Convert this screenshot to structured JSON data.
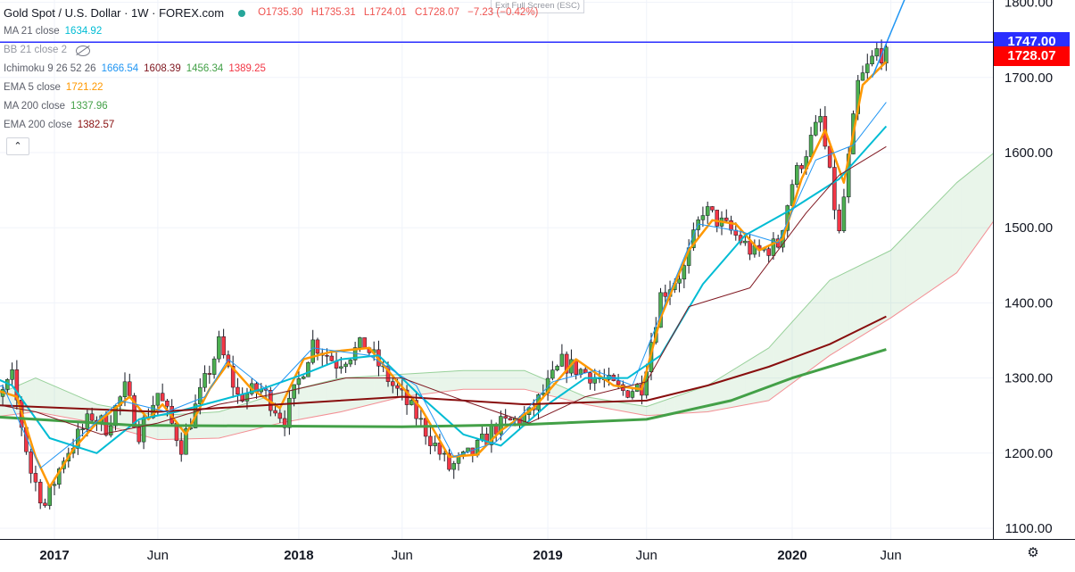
{
  "legend": {
    "title": "Gold Spot / U.S. Dollar · 1W · FOREX.com",
    "ohlc": {
      "o": "O1735.30",
      "h": "H1735.31",
      "l": "L1724.01",
      "c": "C1728.07",
      "chg": "−7.23 (−0.42%)"
    },
    "exit_fullscreen": "Exit Full Screen (ESC)",
    "indicators": [
      {
        "label": "MA 21 close",
        "values": [
          {
            "v": "1634.92",
            "color": "#00bcd4"
          }
        ]
      },
      {
        "label": "BB 21 close 2",
        "values": [],
        "hidden": true
      },
      {
        "label": "Ichimoku 9 26 52 26",
        "values": [
          {
            "v": "1666.54",
            "color": "#2196f3"
          },
          {
            "v": "1608.39",
            "color": "#801922"
          },
          {
            "v": "1456.34",
            "color": "#43a047"
          },
          {
            "v": "1389.25",
            "color": "#f23645"
          }
        ]
      },
      {
        "label": "EMA 5 close",
        "values": [
          {
            "v": "1721.22",
            "color": "#ff9800"
          }
        ]
      },
      {
        "label": "MA 200 close",
        "values": [
          {
            "v": "1337.96",
            "color": "#43a047"
          }
        ]
      },
      {
        "label": "EMA 200 close",
        "values": [
          {
            "v": "1382.57",
            "color": "#880e0e"
          }
        ]
      }
    ],
    "collapse_icon": "chevron-up-icon"
  },
  "price_tags": [
    {
      "text": "1747.00",
      "value": 1747.0,
      "color": "#2a2eff"
    },
    {
      "text": "1728.07",
      "value": 1728.07,
      "color": "#ff0000"
    }
  ],
  "settings_icon": "gear-icon",
  "chart_data": {
    "type": "candlestick",
    "y_ticks": [
      "1100.00",
      "1200.00",
      "1300.00",
      "1400.00",
      "1500.00",
      "1600.00",
      "1700.00",
      "1800.00"
    ],
    "y_range": [
      1082,
      1822
    ],
    "x_ticks": [
      "2017",
      "Jun",
      "2018",
      "Jun",
      "2019",
      "Jun",
      "2020",
      "Jun"
    ],
    "horizontal_line": 1747.0,
    "colors": {
      "up": "#4caf50",
      "down": "#f23645",
      "grid": "#f0f3fa"
    },
    "close_path": [
      [
        "2016-09-05",
        1330
      ],
      [
        "2016-10-03",
        1260
      ],
      [
        "2016-10-31",
        1300
      ],
      [
        "2016-11-28",
        1175
      ],
      [
        "2016-12-19",
        1130
      ],
      [
        "2017-01-16",
        1195
      ],
      [
        "2017-02-27",
        1250
      ],
      [
        "2017-03-20",
        1235
      ],
      [
        "2017-04-17",
        1285
      ],
      [
        "2017-05-08",
        1228
      ],
      [
        "2017-06-05",
        1280
      ],
      [
        "2017-07-10",
        1210
      ],
      [
        "2017-09-04",
        1345
      ],
      [
        "2017-10-02",
        1275
      ],
      [
        "2017-11-06",
        1285
      ],
      [
        "2017-12-11",
        1245
      ],
      [
        "2018-01-22",
        1348
      ],
      [
        "2018-02-26",
        1320
      ],
      [
        "2018-04-09",
        1345
      ],
      [
        "2018-05-21",
        1290
      ],
      [
        "2018-06-25",
        1250
      ],
      [
        "2018-08-13",
        1180
      ],
      [
        "2018-09-17",
        1200
      ],
      [
        "2018-10-22",
        1235
      ],
      [
        "2018-12-10",
        1250
      ],
      [
        "2019-01-28",
        1320
      ],
      [
        "2019-03-11",
        1305
      ],
      [
        "2019-04-29",
        1282
      ],
      [
        "2019-05-27",
        1290
      ],
      [
        "2019-06-24",
        1410
      ],
      [
        "2019-07-29",
        1445
      ],
      [
        "2019-08-26",
        1525
      ],
      [
        "2019-10-07",
        1495
      ],
      [
        "2019-11-11",
        1465
      ],
      [
        "2019-12-16",
        1478
      ],
      [
        "2020-01-06",
        1560
      ],
      [
        "2020-02-17",
        1645
      ],
      [
        "2020-03-16",
        1490
      ],
      [
        "2020-04-13",
        1690
      ],
      [
        "2020-05-11",
        1735
      ],
      [
        "2020-05-25",
        1728
      ]
    ],
    "series": [
      {
        "name": "EMA 5 close",
        "color": "#ff9800",
        "width": 2.5,
        "points": [
          [
            "2016-10-03",
            1285
          ],
          [
            "2016-11-07",
            1275
          ],
          [
            "2016-12-05",
            1195
          ],
          [
            "2016-12-26",
            1155
          ],
          [
            "2017-01-30",
            1205
          ],
          [
            "2017-03-06",
            1240
          ],
          [
            "2017-04-24",
            1275
          ],
          [
            "2017-05-22",
            1245
          ],
          [
            "2017-06-12",
            1265
          ],
          [
            "2017-07-17",
            1225
          ],
          [
            "2017-08-21",
            1285
          ],
          [
            "2017-09-18",
            1320
          ],
          [
            "2017-10-23",
            1285
          ],
          [
            "2017-12-04",
            1260
          ],
          [
            "2018-01-08",
            1325
          ],
          [
            "2018-02-19",
            1335
          ],
          [
            "2018-04-16",
            1340
          ],
          [
            "2018-05-28",
            1295
          ],
          [
            "2018-07-02",
            1260
          ],
          [
            "2018-08-13",
            1195
          ],
          [
            "2018-09-24",
            1198
          ],
          [
            "2018-10-29",
            1230
          ],
          [
            "2018-12-17",
            1260
          ],
          [
            "2019-02-18",
            1325
          ],
          [
            "2019-04-15",
            1290
          ],
          [
            "2019-05-27",
            1285
          ],
          [
            "2019-06-24",
            1380
          ],
          [
            "2019-08-05",
            1470
          ],
          [
            "2019-09-09",
            1510
          ],
          [
            "2019-10-14",
            1505
          ],
          [
            "2019-11-18",
            1470
          ],
          [
            "2019-12-23",
            1485
          ],
          [
            "2020-01-20",
            1565
          ],
          [
            "2020-02-24",
            1630
          ],
          [
            "2020-03-23",
            1560
          ],
          [
            "2020-04-20",
            1690
          ],
          [
            "2020-05-25",
            1721
          ]
        ]
      },
      {
        "name": "MA 21 close",
        "color": "#00bcd4",
        "width": 2,
        "points": [
          [
            "2016-09-05",
            1312
          ],
          [
            "2016-10-31",
            1290
          ],
          [
            "2016-12-26",
            1220
          ],
          [
            "2017-03-06",
            1200
          ],
          [
            "2017-05-08",
            1245
          ],
          [
            "2017-07-03",
            1255
          ],
          [
            "2017-09-04",
            1270
          ],
          [
            "2017-11-06",
            1285
          ],
          [
            "2018-01-08",
            1305
          ],
          [
            "2018-03-05",
            1325
          ],
          [
            "2018-04-30",
            1330
          ],
          [
            "2018-07-02",
            1275
          ],
          [
            "2018-09-03",
            1225
          ],
          [
            "2018-10-29",
            1210
          ],
          [
            "2019-01-07",
            1265
          ],
          [
            "2019-03-04",
            1300
          ],
          [
            "2019-05-06",
            1300
          ],
          [
            "2019-06-24",
            1330
          ],
          [
            "2019-08-26",
            1425
          ],
          [
            "2019-10-28",
            1490
          ],
          [
            "2020-01-06",
            1525
          ],
          [
            "2020-03-16",
            1565
          ],
          [
            "2020-05-25",
            1635
          ]
        ]
      },
      {
        "name": "EMA 200 close",
        "color": "#880e0e",
        "width": 2,
        "points": [
          [
            "2016-09-05",
            1265
          ],
          [
            "2017-06-05",
            1255
          ],
          [
            "2018-06-04",
            1275
          ],
          [
            "2018-12-03",
            1265
          ],
          [
            "2019-06-03",
            1270
          ],
          [
            "2019-09-02",
            1290
          ],
          [
            "2019-12-02",
            1315
          ],
          [
            "2020-03-02",
            1345
          ],
          [
            "2020-05-25",
            1382
          ]
        ]
      },
      {
        "name": "MA 200 close",
        "color": "#43a047",
        "width": 3,
        "points": [
          [
            "2016-09-05",
            1250
          ],
          [
            "2017-05-01",
            1237
          ],
          [
            "2018-06-04",
            1235
          ],
          [
            "2018-12-03",
            1238
          ],
          [
            "2019-06-03",
            1245
          ],
          [
            "2019-10-07",
            1270
          ],
          [
            "2020-01-06",
            1300
          ],
          [
            "2020-05-25",
            1338
          ]
        ]
      },
      {
        "name": "Ichimoku conversion",
        "color": "#2196f3",
        "width": 1,
        "points": [
          [
            "2016-09-05",
            1280
          ],
          [
            "2016-10-17",
            1290
          ],
          [
            "2016-12-12",
            1180
          ],
          [
            "2017-02-13",
            1225
          ],
          [
            "2017-04-10",
            1270
          ],
          [
            "2017-06-19",
            1255
          ],
          [
            "2017-08-14",
            1275
          ],
          [
            "2017-09-18",
            1325
          ],
          [
            "2017-11-20",
            1280
          ],
          [
            "2018-01-22",
            1340
          ],
          [
            "2018-04-16",
            1330
          ],
          [
            "2018-06-25",
            1290
          ],
          [
            "2018-08-20",
            1195
          ],
          [
            "2018-10-22",
            1215
          ],
          [
            "2019-01-14",
            1295
          ],
          [
            "2019-03-18",
            1310
          ],
          [
            "2019-05-13",
            1290
          ],
          [
            "2019-07-01",
            1400
          ],
          [
            "2019-08-19",
            1505
          ],
          [
            "2019-10-21",
            1495
          ],
          [
            "2019-12-16",
            1480
          ],
          [
            "2020-02-10",
            1590
          ],
          [
            "2020-04-06",
            1610
          ],
          [
            "2020-05-25",
            1667
          ]
        ]
      },
      {
        "name": "Ichimoku base",
        "color": "#801922",
        "width": 1,
        "points": [
          [
            "2016-09-05",
            1270
          ],
          [
            "2016-12-05",
            1255
          ],
          [
            "2017-03-13",
            1225
          ],
          [
            "2017-06-05",
            1240
          ],
          [
            "2017-09-04",
            1265
          ],
          [
            "2017-12-04",
            1280
          ],
          [
            "2018-03-12",
            1300
          ],
          [
            "2018-06-04",
            1300
          ],
          [
            "2018-09-03",
            1270
          ],
          [
            "2018-12-10",
            1240
          ],
          [
            "2019-03-04",
            1275
          ],
          [
            "2019-06-03",
            1295
          ],
          [
            "2019-08-05",
            1395
          ],
          [
            "2019-11-04",
            1420
          ],
          [
            "2020-01-27",
            1520
          ],
          [
            "2020-03-16",
            1570
          ],
          [
            "2020-05-25",
            1608
          ]
        ]
      }
    ],
    "cloud": {
      "span_a": [
        [
          "2016-09-05",
          1265
        ],
        [
          "2016-12-05",
          1300
        ],
        [
          "2017-03-06",
          1265
        ],
        [
          "2017-06-05",
          1250
        ],
        [
          "2017-09-04",
          1255
        ],
        [
          "2017-12-04",
          1280
        ],
        [
          "2018-03-05",
          1300
        ],
        [
          "2018-06-04",
          1305
        ],
        [
          "2018-09-03",
          1310
        ],
        [
          "2018-12-03",
          1310
        ],
        [
          "2019-03-04",
          1275
        ],
        [
          "2019-06-03",
          1262
        ],
        [
          "2019-09-02",
          1290
        ],
        [
          "2019-12-02",
          1340
        ],
        [
          "2020-03-02",
          1430
        ],
        [
          "2020-06-01",
          1470
        ],
        [
          "2020-09-07",
          1560
        ],
        [
          "2020-11-02",
          1600
        ]
      ],
      "span_b": [
        [
          "2016-09-05",
          1245
        ],
        [
          "2016-12-05",
          1255
        ],
        [
          "2017-03-06",
          1240
        ],
        [
          "2017-06-05",
          1218
        ],
        [
          "2017-09-04",
          1220
        ],
        [
          "2017-12-04",
          1240
        ],
        [
          "2018-03-05",
          1255
        ],
        [
          "2018-06-04",
          1275
        ],
        [
          "2018-09-03",
          1285
        ],
        [
          "2018-12-03",
          1285
        ],
        [
          "2019-03-04",
          1265
        ],
        [
          "2019-06-03",
          1250
        ],
        [
          "2019-09-02",
          1255
        ],
        [
          "2019-12-02",
          1270
        ],
        [
          "2020-03-02",
          1330
        ],
        [
          "2020-06-01",
          1380
        ],
        [
          "2020-09-07",
          1440
        ],
        [
          "2020-11-02",
          1510
        ]
      ]
    }
  }
}
